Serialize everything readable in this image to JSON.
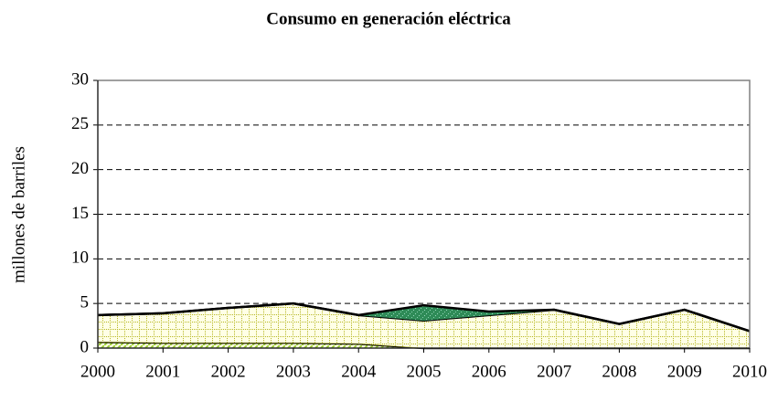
{
  "chart_data": {
    "type": "stacked_area",
    "title": "Consumo en generación eléctrica",
    "y_label": "millones de barriles",
    "categories": [
      "2000",
      "2001",
      "2002",
      "2003",
      "2004",
      "2005",
      "2006",
      "2007",
      "2008",
      "2009",
      "2010"
    ],
    "series": [
      {
        "color": "#9acd32",
        "values": [
          0.7,
          0.6,
          0.6,
          0.6,
          0.5,
          0,
          0,
          0,
          0,
          0,
          0
        ]
      },
      {
        "color": "#b5b520",
        "values": [
          3.0,
          3.3,
          3.9,
          4.4,
          3.2,
          3.1,
          3.7,
          4.3,
          2.7,
          4.3,
          1.9
        ]
      },
      {
        "color": "#2e8b57",
        "values": [
          0,
          0,
          0,
          0,
          0,
          1.7,
          0.4,
          0,
          0,
          0,
          0
        ]
      }
    ],
    "ylim": [
      0,
      30
    ],
    "yticks": [
      0,
      5,
      10,
      15,
      20,
      25,
      30
    ],
    "grid": true
  }
}
